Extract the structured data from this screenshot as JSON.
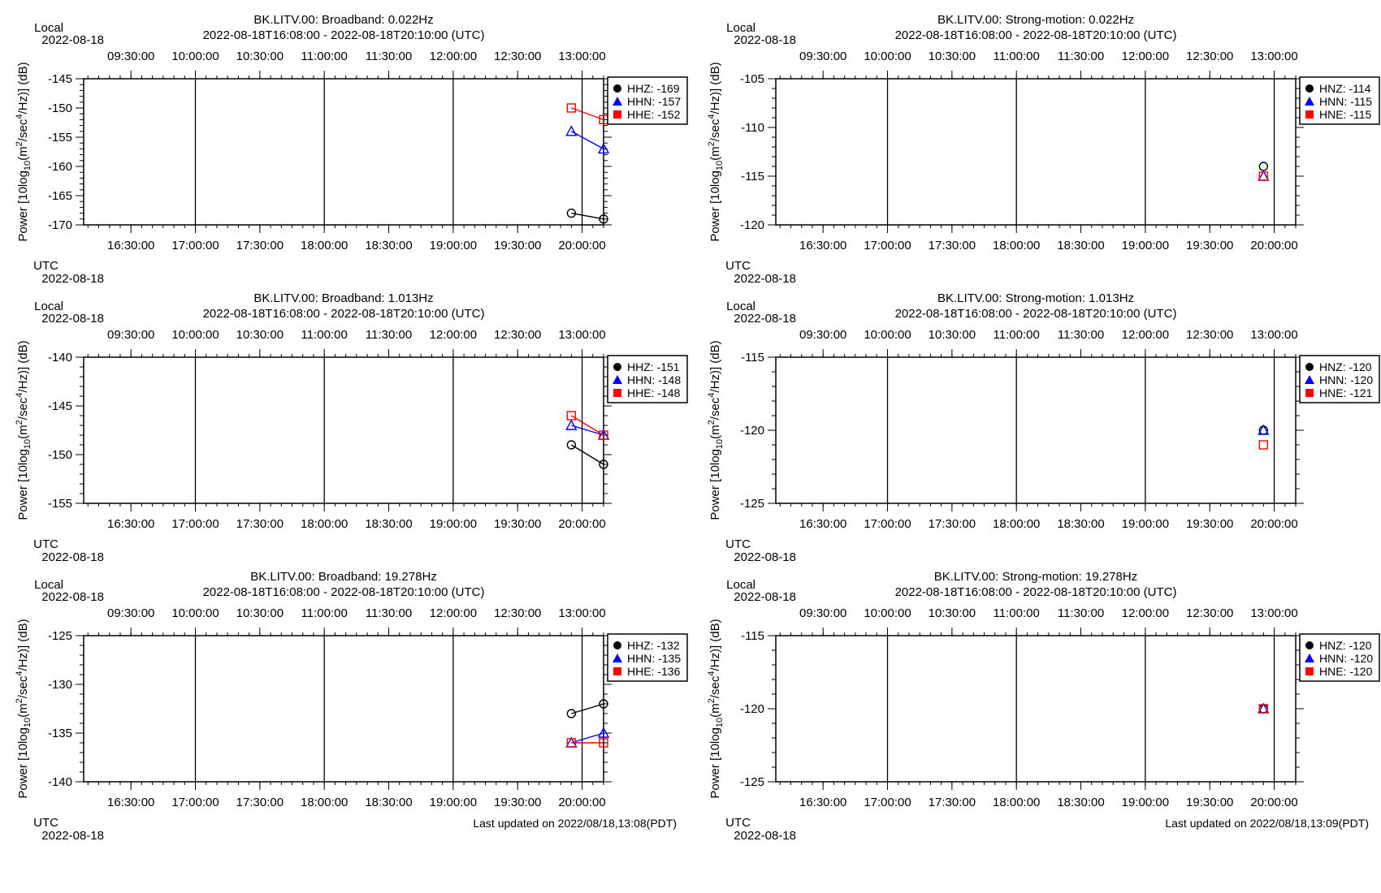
{
  "panels_meta": {
    "local_label": "Local",
    "utc_label": "UTC",
    "date_label": "2022-08-18",
    "time_range": "2022-08-18T16:08:00 - 2022-08-18T20:10:00 (UTC)",
    "ylabel_prefix": "Power [10log",
    "ylabel_sub": "10",
    "ylabel_mid1": "(m",
    "ylabel_sup1": "2",
    "ylabel_mid2": "/sec",
    "ylabel_sup2": "4",
    "ylabel_end": "/Hz)] (dB)",
    "local_ticks": [
      "09:30:00",
      "10:00:00",
      "10:30:00",
      "11:00:00",
      "11:30:00",
      "12:00:00",
      "12:30:00",
      "13:00:00"
    ],
    "utc_ticks": [
      "16:30:00",
      "17:00:00",
      "17:30:00",
      "18:00:00",
      "18:30:00",
      "19:00:00",
      "19:30:00",
      "20:00:00"
    ]
  },
  "footer": {
    "left_updated": "Last updated on 2022/08/18,13:08(PDT)",
    "right_updated": "Last updated on 2022/08/18,13:09(PDT)"
  },
  "colors": {
    "Z": "#000000",
    "N": "#0000ff",
    "E": "#ff0000"
  },
  "chart_data": [
    {
      "type": "line",
      "title": "BK.LITV.00: Broadband: 0.022Hz",
      "xlabel": "UTC",
      "ylabel": "Power [10log10(m2/sec4/Hz)] (dB)",
      "x": [
        "2022-08-18T19:55:00",
        "2022-08-18T20:10:00"
      ],
      "ylim": [
        -170,
        -145
      ],
      "yticks": [
        -145,
        -150,
        -155,
        -160,
        -165,
        -170
      ],
      "legend": "right",
      "series": [
        {
          "name": "HHZ",
          "legend_label": "HHZ: -169",
          "marker": "circle",
          "x": [
            "2022-08-18T19:55:00",
            "2022-08-18T20:10:00"
          ],
          "values": [
            -168,
            -169
          ]
        },
        {
          "name": "HHN",
          "legend_label": "HHN: -157",
          "marker": "triangle",
          "x": [
            "2022-08-18T19:55:00",
            "2022-08-18T20:10:00"
          ],
          "values": [
            -154,
            -157
          ]
        },
        {
          "name": "HHE",
          "legend_label": "HHE: -152",
          "marker": "square",
          "x": [
            "2022-08-18T19:55:00",
            "2022-08-18T20:10:00"
          ],
          "values": [
            -150,
            -152
          ]
        }
      ]
    },
    {
      "type": "line",
      "title": "BK.LITV.00: Strong-motion: 0.022Hz",
      "xlabel": "UTC",
      "ylabel": "Power [10log10(m2/sec4/Hz)] (dB)",
      "x": [
        "2022-08-18T19:55:00"
      ],
      "ylim": [
        -120,
        -105
      ],
      "yticks": [
        -105,
        -110,
        -115,
        -120
      ],
      "legend": "right",
      "series": [
        {
          "name": "HNZ",
          "legend_label": "HNZ: -114",
          "marker": "circle",
          "x": [
            "2022-08-18T19:55:00"
          ],
          "values": [
            -114
          ]
        },
        {
          "name": "HNN",
          "legend_label": "HNN: -115",
          "marker": "triangle",
          "x": [
            "2022-08-18T19:55:00"
          ],
          "values": [
            -115
          ]
        },
        {
          "name": "HNE",
          "legend_label": "HNE: -115",
          "marker": "square",
          "x": [
            "2022-08-18T19:55:00"
          ],
          "values": [
            -115
          ]
        }
      ]
    },
    {
      "type": "line",
      "title": "BK.LITV.00: Broadband: 1.013Hz",
      "xlabel": "UTC",
      "ylabel": "Power [10log10(m2/sec4/Hz)] (dB)",
      "x": [
        "2022-08-18T19:55:00",
        "2022-08-18T20:10:00"
      ],
      "ylim": [
        -155,
        -140
      ],
      "yticks": [
        -140,
        -145,
        -150,
        -155
      ],
      "legend": "right",
      "series": [
        {
          "name": "HHZ",
          "legend_label": "HHZ: -151",
          "marker": "circle",
          "x": [
            "2022-08-18T19:55:00",
            "2022-08-18T20:10:00"
          ],
          "values": [
            -149,
            -151
          ]
        },
        {
          "name": "HHN",
          "legend_label": "HHN: -148",
          "marker": "triangle",
          "x": [
            "2022-08-18T19:55:00",
            "2022-08-18T20:10:00"
          ],
          "values": [
            -147,
            -148
          ]
        },
        {
          "name": "HHE",
          "legend_label": "HHE: -148",
          "marker": "square",
          "x": [
            "2022-08-18T19:55:00",
            "2022-08-18T20:10:00"
          ],
          "values": [
            -146,
            -148
          ]
        }
      ]
    },
    {
      "type": "line",
      "title": "BK.LITV.00: Strong-motion: 1.013Hz",
      "xlabel": "UTC",
      "ylabel": "Power [10log10(m2/sec4/Hz)] (dB)",
      "x": [
        "2022-08-18T19:55:00"
      ],
      "ylim": [
        -125,
        -115
      ],
      "yticks": [
        -115,
        -120,
        -125
      ],
      "legend": "right",
      "series": [
        {
          "name": "HNZ",
          "legend_label": "HNZ: -120",
          "marker": "circle",
          "x": [
            "2022-08-18T19:55:00"
          ],
          "values": [
            -120
          ]
        },
        {
          "name": "HNN",
          "legend_label": "HNN: -120",
          "marker": "triangle",
          "x": [
            "2022-08-18T19:55:00"
          ],
          "values": [
            -120
          ]
        },
        {
          "name": "HNE",
          "legend_label": "HNE: -121",
          "marker": "square",
          "x": [
            "2022-08-18T19:55:00"
          ],
          "values": [
            -121
          ]
        }
      ]
    },
    {
      "type": "line",
      "title": "BK.LITV.00: Broadband: 19.278Hz",
      "xlabel": "UTC",
      "ylabel": "Power [10log10(m2/sec4/Hz)] (dB)",
      "x": [
        "2022-08-18T19:55:00",
        "2022-08-18T20:10:00"
      ],
      "ylim": [
        -140,
        -125
      ],
      "yticks": [
        -125,
        -130,
        -135,
        -140
      ],
      "legend": "right",
      "series": [
        {
          "name": "HHZ",
          "legend_label": "HHZ: -132",
          "marker": "circle",
          "x": [
            "2022-08-18T19:55:00",
            "2022-08-18T20:10:00"
          ],
          "values": [
            -133,
            -132
          ]
        },
        {
          "name": "HHN",
          "legend_label": "HHN: -135",
          "marker": "triangle",
          "x": [
            "2022-08-18T19:55:00",
            "2022-08-18T20:10:00"
          ],
          "values": [
            -136,
            -135
          ]
        },
        {
          "name": "HHE",
          "legend_label": "HHE: -136",
          "marker": "square",
          "x": [
            "2022-08-18T19:55:00",
            "2022-08-18T20:10:00"
          ],
          "values": [
            -136,
            -136
          ]
        }
      ]
    },
    {
      "type": "line",
      "title": "BK.LITV.00: Strong-motion: 19.278Hz",
      "xlabel": "UTC",
      "ylabel": "Power [10log10(m2/sec4/Hz)] (dB)",
      "x": [
        "2022-08-18T19:55:00"
      ],
      "ylim": [
        -125,
        -115
      ],
      "yticks": [
        -115,
        -120,
        -125
      ],
      "legend": "right",
      "series": [
        {
          "name": "HNZ",
          "legend_label": "HNZ: -120",
          "marker": "circle",
          "x": [
            "2022-08-18T19:55:00"
          ],
          "values": [
            -120
          ]
        },
        {
          "name": "HNN",
          "legend_label": "HNN: -120",
          "marker": "triangle",
          "x": [
            "2022-08-18T19:55:00"
          ],
          "values": [
            -120
          ]
        },
        {
          "name": "HNE",
          "legend_label": "HNE: -120",
          "marker": "square",
          "x": [
            "2022-08-18T19:55:00"
          ],
          "values": [
            -120
          ]
        }
      ]
    }
  ]
}
